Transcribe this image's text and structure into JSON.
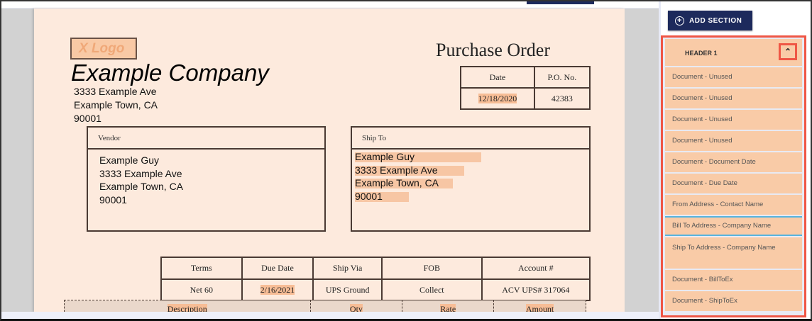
{
  "document": {
    "logo_text": "X Logo",
    "company_name": "Example Company",
    "company_address": [
      "3333 Example Ave",
      "Example Town, CA",
      "90001"
    ],
    "title": "Purchase Order",
    "date_table": {
      "headers": [
        "Date",
        "P.O. No."
      ],
      "values": [
        "12/18/2020",
        "42383"
      ]
    },
    "vendor": {
      "label": "Vendor",
      "lines": [
        "Example Guy",
        "3333 Example Ave",
        "Example Town, CA",
        "90001"
      ]
    },
    "ship_to": {
      "label": "Ship To",
      "lines": [
        "Example Guy",
        "3333 Example Ave",
        "Example Town, CA",
        "90001"
      ]
    },
    "terms_table": {
      "headers": [
        "Terms",
        "Due Date",
        "Ship Via",
        "FOB",
        "Account #"
      ],
      "values": [
        "Net 60",
        "2/16/2021",
        "UPS Ground",
        "Collect",
        "ACV UPS# 317064"
      ]
    },
    "line_items_headers": [
      "Description",
      "Qty",
      "Rate",
      "Amount"
    ]
  },
  "sidebar": {
    "add_section_label": "ADD SECTION",
    "section_title": "HEADER 1",
    "collapse_icon": "chevron-up-icon",
    "items": [
      "Document - Unused",
      "Document - Unused",
      "Document - Unused",
      "Document - Unused",
      "Document - Document Date",
      "Document - Due Date",
      "From Address - Contact Name",
      "Bill To Address - Company Name",
      "Ship To Address - Company Name",
      "Document - BillToEx",
      "Document - ShipToEx"
    ]
  },
  "colors": {
    "highlight": "#f9cba7",
    "accent": "#1d2a5c",
    "selection_outline": "#ef5645",
    "selected_item_border": "#56b4df"
  }
}
